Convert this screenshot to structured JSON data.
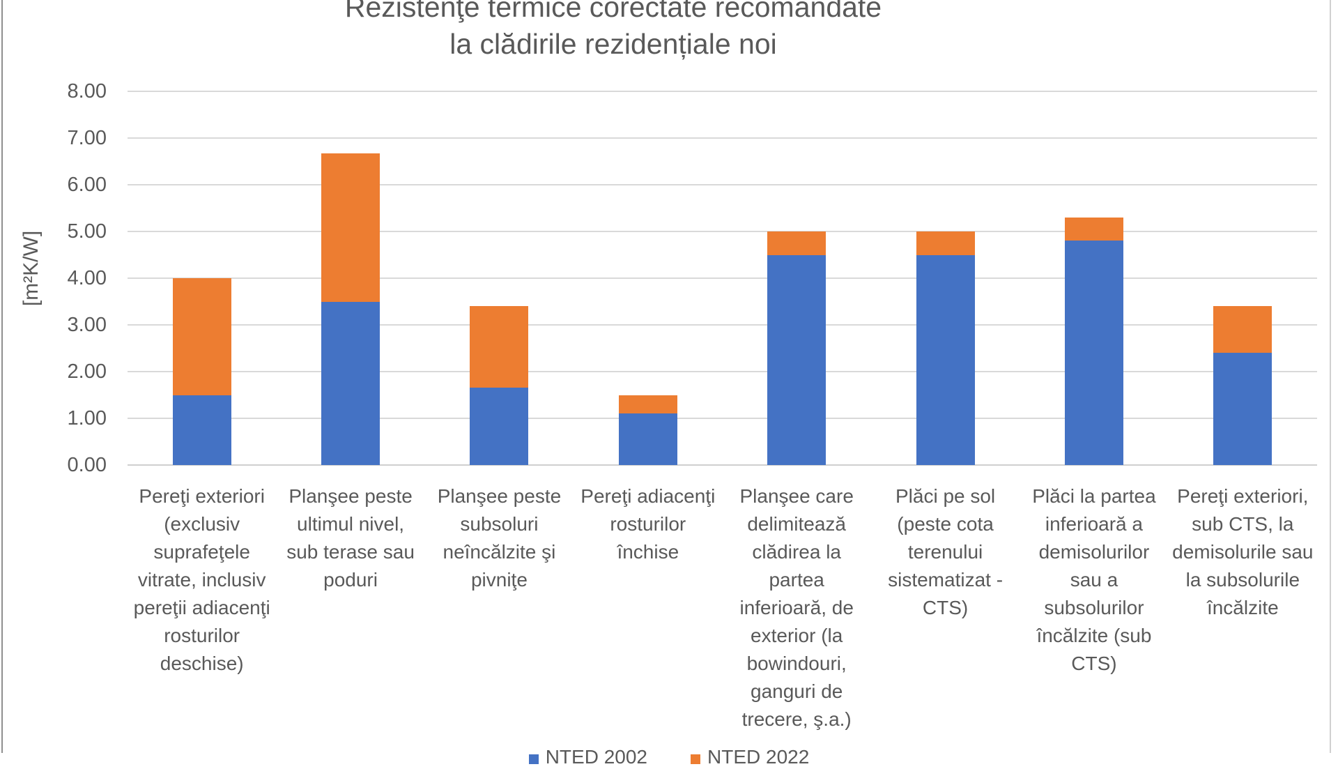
{
  "title": {
    "line1": "Rezistenţe termice corectate recomandate",
    "line2": "la clădirile rezidențiale noi"
  },
  "y_axis": {
    "unit_label": "[m²K/W]",
    "ticks": [
      "8.00",
      "7.00",
      "6.00",
      "5.00",
      "4.00",
      "3.00",
      "2.00",
      "1.00",
      "0.00"
    ],
    "min": 0,
    "max": 8,
    "step": 1
  },
  "legend": {
    "clipped_at_bottom": true,
    "items": [
      {
        "label": "NTED 2002",
        "color": "#4472C4"
      },
      {
        "label": "NTED 2022",
        "color": "#ED7D31"
      }
    ]
  },
  "colors": {
    "series_blue": "#4472C4",
    "series_orange": "#ED7D31",
    "gridline": "#D9D9D9",
    "text": "#595959",
    "background": "#FFFFFF"
  },
  "chart_data": {
    "type": "bar",
    "stacked": true,
    "title": "Rezistenţe termice corectate recomandate la clădirile rezidențiale noi",
    "ylabel": "[m²K/W]",
    "ylim": [
      0,
      8
    ],
    "grid": true,
    "legend_position": "bottom (clipped by image edge)",
    "categories": [
      "Pereţi exteriori (exclusiv suprafeţele vitrate, inclusiv pereţii adiacenţi rosturilor deschise)",
      "Planşee peste ultimul nivel, sub terase sau poduri",
      "Planşee peste subsoluri neîncălzite şi pivniţe",
      "Pereţi adiacenţi rosturilor închise",
      "Planşee care delimitează clădirea la partea inferioară, de exterior (la bowindouri, ganguri de trecere, ş.a.)",
      "Plăci pe sol (peste cota terenului sistematizat - CTS)",
      "Plăci la partea inferioară a demisolurilor sau a subsolurilor încălzite (sub CTS)",
      "Pereţi exteriori, sub CTS, la demisolurile sau la subsolurile încălzite"
    ],
    "categories_wrapped": [
      "Pereţi exteriori\n(exclusiv\nsuprafeţele\nvitrate, inclusiv\npereţii adiacenţi\nrosturilor\ndeschise)",
      "Planşee peste\nultimul nivel,\nsub terase sau\npoduri",
      "Planşee peste\nsubsoluri\nneîncălzite şi\npivniţe",
      "Pereţi adiacenţi\nrosturilor\nînchise",
      "Planşee care\ndelimitează\nclădirea la\npartea\ninferioară, de\nexterior (la\nbowindouri,\nganguri de\ntrecere, ş.a.)",
      "Plăci pe sol\n(peste cota\nterenului\nsistematizat -\nCTS)",
      "Plăci la partea\ninferioară a\ndemisolurilor\nsau a\nsubsolurilor\nîncălzite (sub\nCTS)",
      "Pereţi exteriori,\nsub CTS, la\ndemisolurile sau\nla subsolurile\nîncălzite"
    ],
    "series": [
      {
        "name": "NTED 2002",
        "color": "#4472C4",
        "values": [
          1.5,
          3.5,
          1.65,
          1.1,
          4.5,
          4.5,
          4.8,
          2.4
        ]
      },
      {
        "name": "NTED 2022",
        "color": "#ED7D31",
        "values": [
          2.5,
          3.17,
          1.75,
          0.4,
          0.5,
          0.5,
          0.5,
          1.0
        ]
      }
    ],
    "stack_totals": [
      4.0,
      6.67,
      3.4,
      1.5,
      5.0,
      5.0,
      5.3,
      3.4
    ]
  }
}
